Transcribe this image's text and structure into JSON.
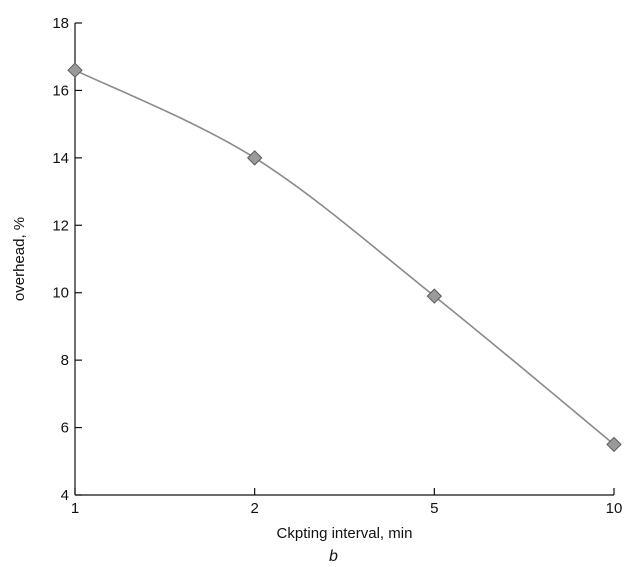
{
  "panel_label": "b",
  "chart_data": {
    "type": "line",
    "categories": [
      "1",
      "2",
      "5",
      "10"
    ],
    "series": [
      {
        "values": [
          16.6,
          14.0,
          9.9,
          5.5
        ]
      }
    ],
    "xlabel": "Ckpting interval, min",
    "ylabel": "overhead, %",
    "ylim": [
      4,
      18
    ],
    "yticks": [
      4,
      6,
      8,
      10,
      12,
      14,
      16,
      18
    ],
    "grid": false,
    "legend": "none",
    "colors": {
      "line": "#8a8a8a",
      "marker": "#9a9a9a"
    }
  }
}
